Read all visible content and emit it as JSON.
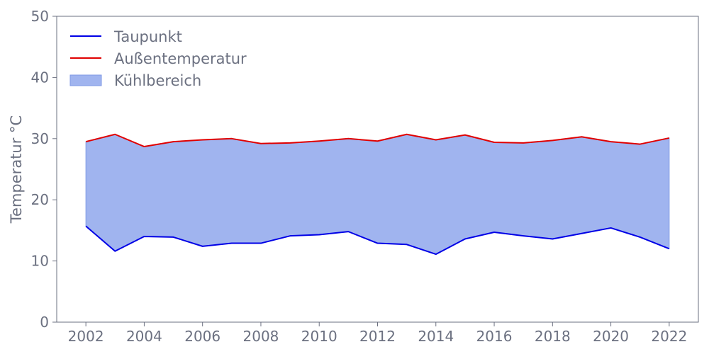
{
  "chart_data": {
    "type": "area",
    "title": "",
    "xlabel": "",
    "ylabel": "Temperatur °C",
    "xlim": [
      2001,
      2023
    ],
    "ylim": [
      0,
      50
    ],
    "x_ticks": [
      2002,
      2004,
      2006,
      2008,
      2010,
      2012,
      2014,
      2016,
      2018,
      2020,
      2022
    ],
    "y_ticks": [
      0,
      10,
      20,
      30,
      40,
      50
    ],
    "grid": false,
    "legend_position": "top-left",
    "x": [
      2002,
      2003,
      2004,
      2005,
      2006,
      2007,
      2008,
      2009,
      2010,
      2011,
      2012,
      2013,
      2014,
      2015,
      2016,
      2017,
      2018,
      2019,
      2020,
      2021,
      2022
    ],
    "series": [
      {
        "name": "Taupunkt",
        "color": "#0000e6",
        "values": [
          15.7,
          11.6,
          14.0,
          13.9,
          12.4,
          12.9,
          12.9,
          14.1,
          14.3,
          14.8,
          12.9,
          12.7,
          11.1,
          13.6,
          14.7,
          14.1,
          13.6,
          14.5,
          15.4,
          13.9,
          12.0
        ]
      },
      {
        "name": "Außentemperatur",
        "color": "#e00000",
        "values": [
          29.5,
          30.7,
          28.7,
          29.5,
          29.8,
          30.0,
          29.2,
          29.3,
          29.6,
          30.0,
          29.6,
          30.7,
          29.8,
          30.6,
          29.4,
          29.3,
          29.7,
          30.3,
          29.5,
          29.1,
          30.1
        ]
      }
    ],
    "fill_between": {
      "name": "Kühlbereich",
      "lower": "Taupunkt",
      "upper": "Außentemperatur",
      "color": "#6f8fe6"
    }
  }
}
